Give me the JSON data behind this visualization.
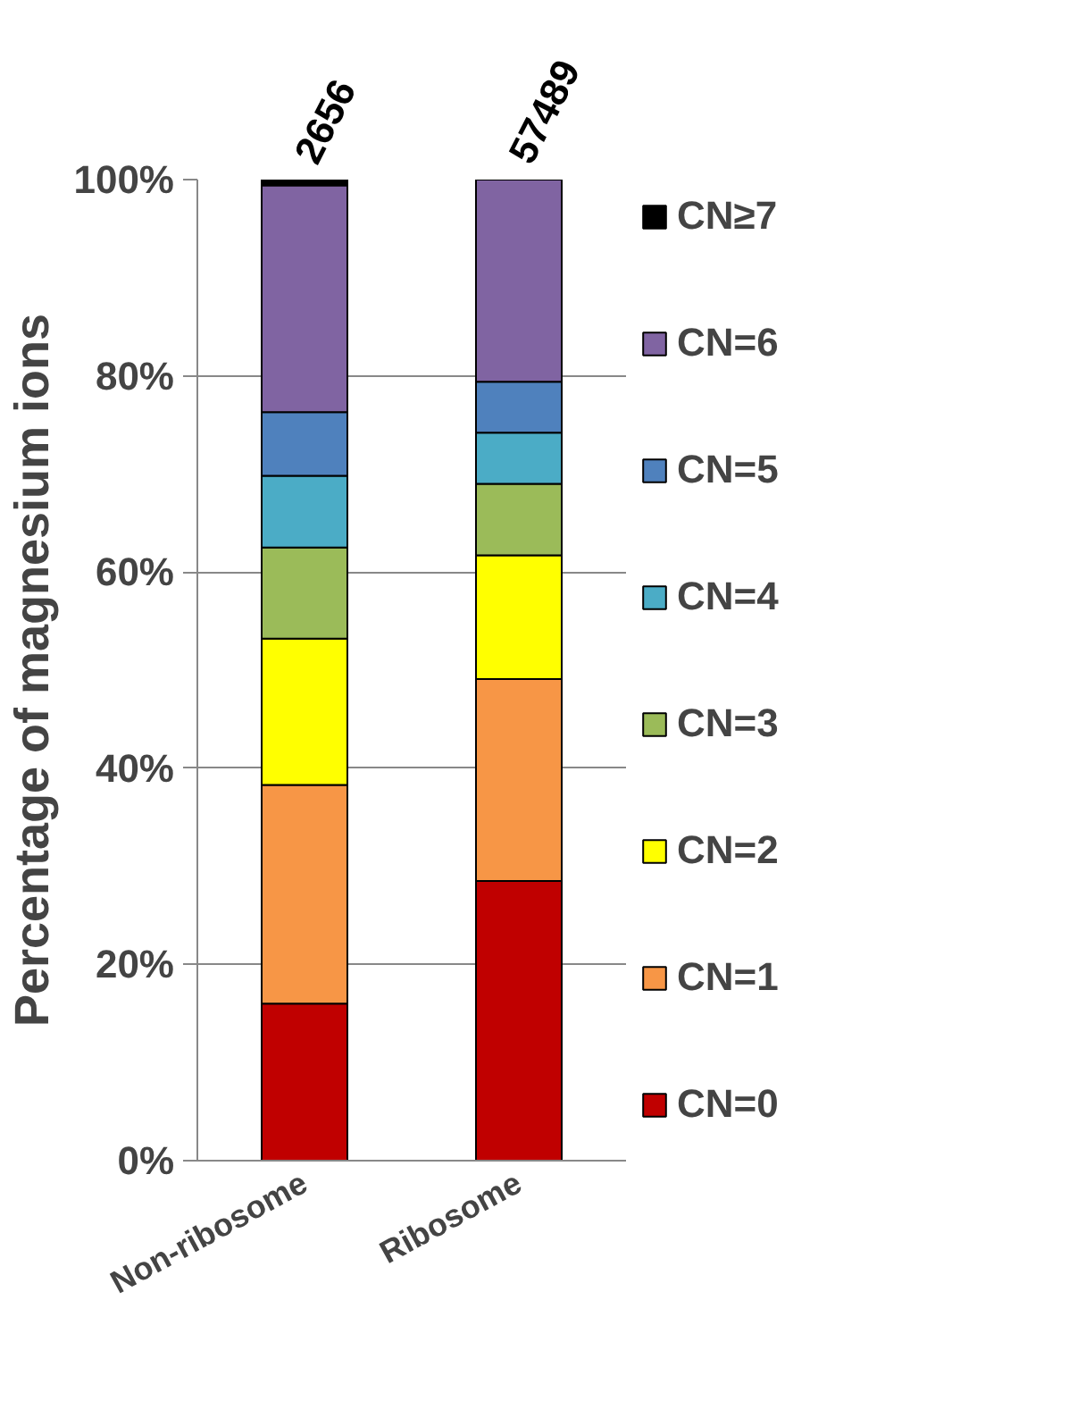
{
  "chart_data": {
    "type": "bar",
    "stacked": true,
    "ylabel": "Percentage of magnesium ions",
    "categories": [
      "Non-ribosome",
      "Ribosome"
    ],
    "series": [
      {
        "name": "CN=0",
        "color": "#c00000",
        "values": [
          16.0,
          28.5
        ]
      },
      {
        "name": "CN=1",
        "color": "#f79646",
        "values": [
          22.3,
          20.6
        ]
      },
      {
        "name": "CN=2",
        "color": "#ffff00",
        "values": [
          14.9,
          12.6
        ]
      },
      {
        "name": "CN=3",
        "color": "#9bbb59",
        "values": [
          9.3,
          7.3
        ]
      },
      {
        "name": "CN=4",
        "color": "#4bacc6",
        "values": [
          7.3,
          5.2
        ]
      },
      {
        "name": "CN=5",
        "color": "#4f81bd",
        "values": [
          6.5,
          5.2
        ]
      },
      {
        "name": "CN=6",
        "color": "#8064a2",
        "values": [
          23.1,
          20.6
        ]
      },
      {
        "name": "CN≥7",
        "color": "#000000",
        "values": [
          0.6,
          0
        ]
      }
    ],
    "annotations": [
      "2656",
      "57489"
    ],
    "ylim": [
      0,
      100
    ],
    "yticks": [
      {
        "value": 0,
        "label": "0%"
      },
      {
        "value": 20,
        "label": "20%"
      },
      {
        "value": 40,
        "label": "40%"
      },
      {
        "value": 60,
        "label": "60%"
      },
      {
        "value": 80,
        "label": "80%"
      },
      {
        "value": 100,
        "label": "100%"
      }
    ],
    "grid": "y",
    "legend": "right"
  }
}
